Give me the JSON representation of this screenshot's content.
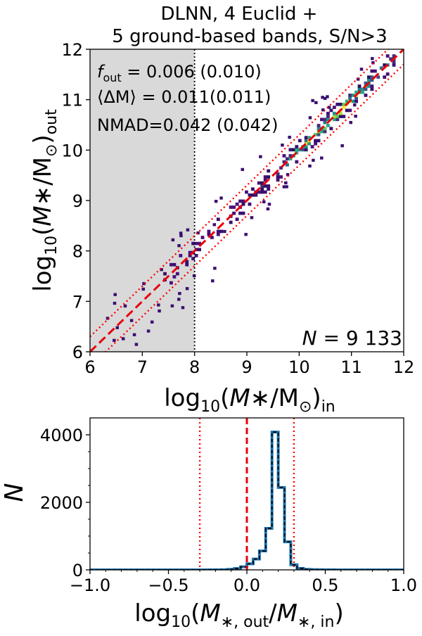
{
  "chart_data": [
    {
      "type": "heatmap",
      "title_line1": "DLNN, 4 Euclid +",
      "title_line2": "5 ground-based bands, S/N>3",
      "xlabel_log": "log",
      "xlabel_sub10": "10",
      "xlabel_rest_open": "(",
      "xlabel_M": "M",
      "xlabel_star": "∗",
      "xlabel_slash": "/M",
      "xlabel_sun": "⊙",
      "xlabel_close": ")",
      "xlabel_sub": "in",
      "ylabel_sub": "out",
      "xlim": [
        6,
        12
      ],
      "ylim": [
        6,
        12
      ],
      "xticks": [
        "6",
        "7",
        "8",
        "9",
        "10",
        "11",
        "12"
      ],
      "yticks": [
        "6",
        "7",
        "8",
        "9",
        "10",
        "11",
        "12"
      ],
      "shaded_region_xmax": 8,
      "cut_line_x": 8,
      "stats": {
        "fout_symbol": "f",
        "fout_sub": "out",
        "fout_text": " = 0.006 (0.010)",
        "dm_text": "⟨ΔM⟩ = 0.011(0.011)",
        "nmad_text": "NMAD=0.042 (0.042)",
        "n_symbol": "N",
        "n_text": " = 9 133"
      },
      "one_to_one_line": {
        "style": "dashed",
        "color": "#e8000b"
      },
      "outlier_bounds": {
        "offset": 0.3,
        "style": "dotted",
        "color": "#ff0000"
      },
      "colormap": "viridis-like (purple → yellow)"
    },
    {
      "type": "bar",
      "subtype": "step-histogram",
      "xlabel": "log10(M*,out/M*,in)",
      "ylabel": "N",
      "xlim": [
        -1.0,
        1.0
      ],
      "ylim": [
        0,
        4500
      ],
      "xticks": [
        "−1.0",
        "−0.5",
        "0.0",
        "0.5",
        "1.0"
      ],
      "yticks": [
        "0",
        "2000",
        "4000"
      ],
      "bin_width": 0.04,
      "bin_edges_start": -1.0,
      "values": [
        0,
        0,
        0,
        0,
        0,
        0,
        0,
        0,
        0,
        0,
        0,
        0,
        0,
        0,
        0,
        0,
        0,
        0,
        0,
        2,
        3,
        5,
        15,
        40,
        90,
        180,
        320,
        560,
        1230,
        4080,
        2440,
        830,
        150,
        45,
        15,
        8,
        5,
        3,
        2,
        0,
        0,
        0,
        0,
        0,
        0,
        0,
        0,
        0,
        0,
        0
      ],
      "center_line": 0.0,
      "outlier_lines": [
        -0.3,
        0.3
      ],
      "line_color": "#1f77b4",
      "outline_color": "#000000",
      "ref_color": "#e8000b"
    }
  ]
}
